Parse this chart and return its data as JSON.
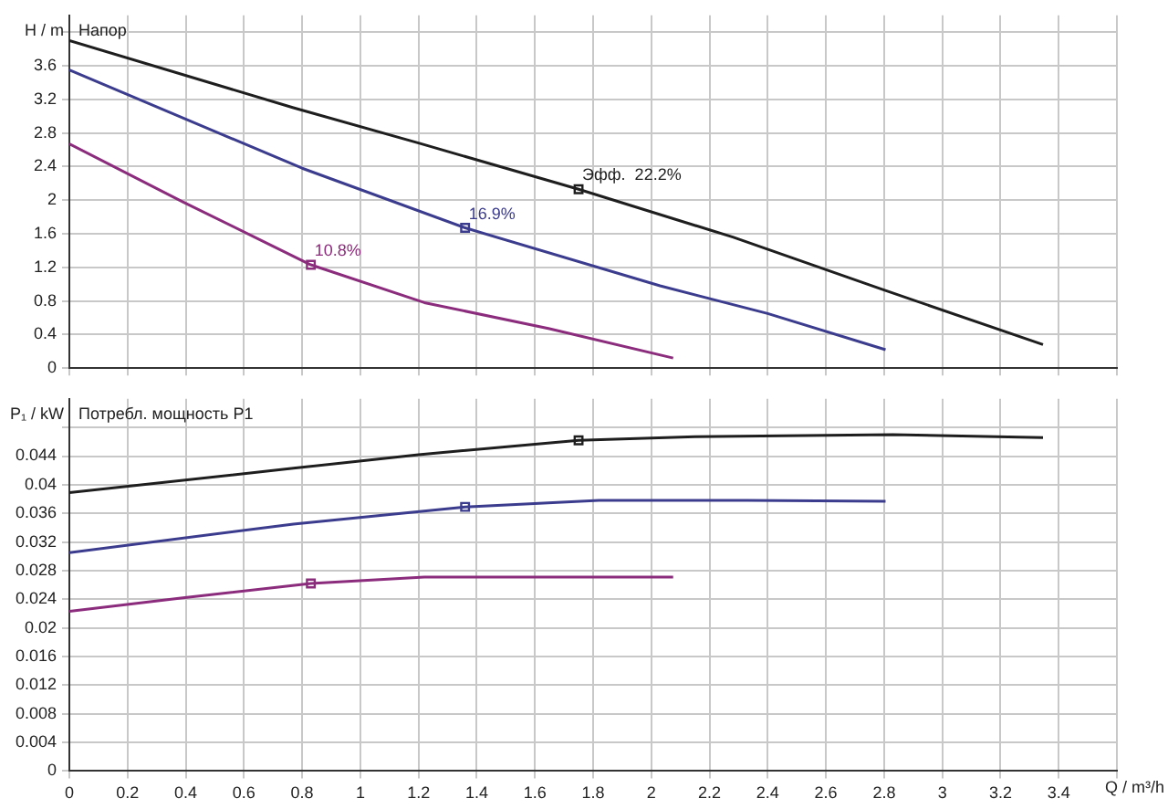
{
  "chart_data": [
    {
      "type": "line",
      "title": "Напор",
      "ylabel": "H / m",
      "xlim": [
        0,
        3.6
      ],
      "ylim": [
        0,
        4.2
      ],
      "xticks": [
        0,
        0.2,
        0.4,
        0.6,
        0.8,
        1,
        1.2,
        1.4,
        1.6,
        1.8,
        2,
        2.2,
        2.4,
        2.6,
        2.8,
        3,
        3.2,
        3.4,
        {
          "value": 3.6,
          "label": null
        }
      ],
      "yticks": [
        0,
        0.4,
        0.8,
        1.2,
        1.6,
        2,
        2.4,
        2.8,
        3.2,
        3.6,
        {
          "value": 4,
          "label": null
        }
      ],
      "tick_labels": "y",
      "grid": true,
      "legend": false,
      "marker": "none",
      "line_style": "solid",
      "series": [
        {
          "color": "#1e1e1e",
          "x": [
            0,
            0.77,
            1.2,
            1.75,
            2.28,
            2.8,
            3.346
          ],
          "values": [
            3.9,
            3.1,
            2.68,
            2.13,
            1.56,
            0.93,
            0.28
          ]
        },
        {
          "color": "#3c3c8e",
          "x": [
            0,
            0.39,
            0.8,
            1.36,
            2.03,
            2.4,
            2.805
          ],
          "values": [
            3.55,
            2.98,
            2.38,
            1.67,
            0.98,
            0.65,
            0.22
          ]
        },
        {
          "color": "#8c2c7c",
          "x": [
            0,
            0.39,
            0.83,
            1.22,
            1.65,
            2.075
          ],
          "values": [
            2.67,
            1.98,
            1.23,
            0.78,
            0.47,
            0.12
          ]
        },
        {
          "type": "scatter",
          "marker": "square",
          "color": "#1e1e1e",
          "x": [
            1.75
          ],
          "values": [
            2.13
          ]
        },
        {
          "type": "scatter",
          "marker": "square",
          "color": "#3c3c8e",
          "x": [
            1.36
          ],
          "values": [
            1.67
          ]
        },
        {
          "type": "scatter",
          "marker": "square",
          "color": "#8c2c7c",
          "x": [
            0.83
          ],
          "values": [
            1.23
          ]
        }
      ],
      "annotations": [
        {
          "text": "Эфф.  22.2%",
          "x": 1.75,
          "y": 2.13
        },
        {
          "text": "16.9%",
          "x": 1.36,
          "y": 1.67
        },
        {
          "text": "10.8%",
          "x": 0.83,
          "y": 1.23
        }
      ]
    },
    {
      "type": "line",
      "title": "Потребл. мощность P1",
      "ylabel": "P₁ / kW",
      "xlabel": "Q / m³/h",
      "xlim": [
        0,
        3.6
      ],
      "ylim": [
        0,
        0.052
      ],
      "xticks": [
        0,
        0.2,
        0.4,
        0.6,
        0.8,
        1,
        1.2,
        1.4,
        1.6,
        1.8,
        2,
        2.2,
        2.4,
        2.6,
        2.8,
        3,
        3.2,
        3.4,
        {
          "value": 3.6,
          "label": null
        }
      ],
      "yticks": [
        0,
        0.004,
        0.008,
        0.012,
        0.016,
        0.02,
        0.024,
        0.028,
        0.032,
        0.036,
        0.04,
        0.044,
        {
          "value": 0.048,
          "label": null
        }
      ],
      "grid": true,
      "legend": false,
      "marker": "none",
      "line_style": "solid",
      "series": [
        {
          "color": "#1e1e1e",
          "x": [
            0,
            0.77,
            1.2,
            1.75,
            2.15,
            2.83,
            3.346
          ],
          "values": [
            0.0389,
            0.0423,
            0.0442,
            0.0462,
            0.0467,
            0.047,
            0.0466
          ]
        },
        {
          "color": "#3c3c8e",
          "x": [
            0,
            0.77,
            1.36,
            1.82,
            2.33,
            2.805
          ],
          "values": [
            0.0305,
            0.0345,
            0.0369,
            0.0378,
            0.0378,
            0.0377
          ]
        },
        {
          "color": "#8c2c7c",
          "x": [
            0,
            0.39,
            0.83,
            1.22,
            2.075
          ],
          "values": [
            0.0223,
            0.0242,
            0.0262,
            0.0271,
            0.0271
          ]
        },
        {
          "type": "scatter",
          "marker": "square",
          "color": "#1e1e1e",
          "x": [
            1.75
          ],
          "values": [
            0.0462
          ]
        },
        {
          "type": "scatter",
          "marker": "square",
          "color": "#3c3c8e",
          "x": [
            1.36
          ],
          "values": [
            0.0369
          ]
        },
        {
          "type": "scatter",
          "marker": "square",
          "color": "#8c2c7c",
          "x": [
            0.83
          ],
          "values": [
            0.0262
          ]
        }
      ]
    }
  ]
}
